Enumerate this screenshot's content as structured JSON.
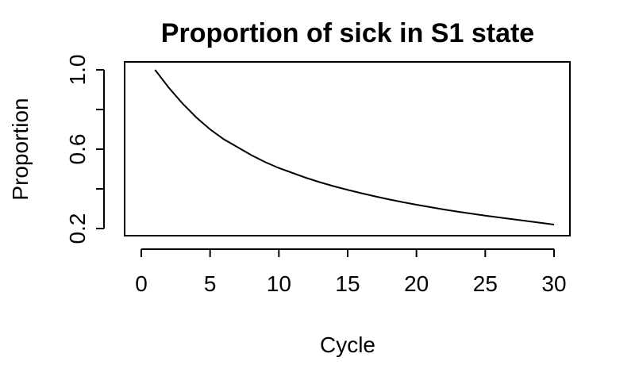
{
  "chart_data": {
    "type": "line",
    "title": "Proportion of sick in S1 state",
    "xlabel": "Cycle",
    "ylabel": "Proportion",
    "xlim": [
      0,
      30
    ],
    "ylim": [
      0.2,
      1.0
    ],
    "x_ticks": [
      0,
      5,
      10,
      15,
      20,
      25,
      30
    ],
    "x_tick_labels": [
      "0",
      "5",
      "10",
      "15",
      "20",
      "25",
      "30"
    ],
    "y_ticks": [
      0.2,
      0.4,
      0.6,
      0.8,
      1.0
    ],
    "y_tick_labels": [
      "0.2",
      "",
      "0.6",
      "",
      "1.0"
    ],
    "grid": false,
    "series": [
      {
        "x": [
          1,
          2,
          3,
          4,
          5,
          6,
          7,
          8,
          9,
          10,
          11,
          12,
          13,
          14,
          15,
          16,
          17,
          18,
          19,
          20,
          21,
          22,
          23,
          24,
          25,
          26,
          27,
          28,
          29,
          30
        ],
        "values": [
          1.0,
          0.91,
          0.83,
          0.76,
          0.7,
          0.65,
          0.61,
          0.57,
          0.535,
          0.505,
          0.48,
          0.455,
          0.433,
          0.413,
          0.395,
          0.378,
          0.362,
          0.347,
          0.333,
          0.32,
          0.308,
          0.296,
          0.285,
          0.275,
          0.265,
          0.256,
          0.247,
          0.238,
          0.229,
          0.22
        ]
      }
    ]
  }
}
